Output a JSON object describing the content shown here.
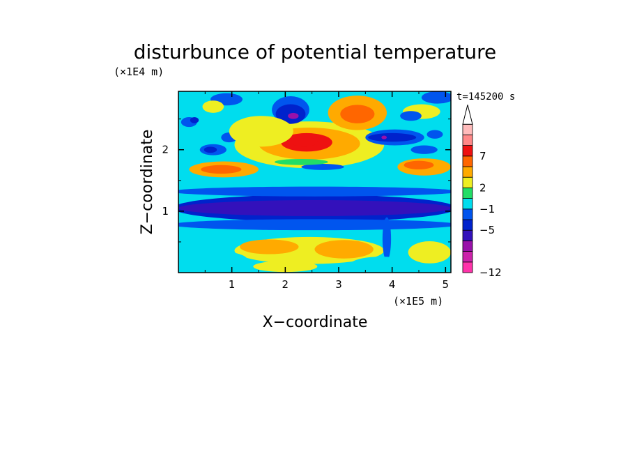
{
  "chart_data": {
    "type": "heatmap",
    "title": "disturbunce of potential temperature",
    "xlabel": "X−coordinate",
    "ylabel": "Z−coordinate",
    "x_unit": "(×1E5 m)",
    "y_unit": "(×1E4 m)",
    "time_label": "t=145200 s",
    "xlim": [
      0,
      5.1
    ],
    "ylim": [
      0,
      2.95
    ],
    "x_ticks": [
      1,
      2,
      3,
      4,
      5
    ],
    "y_ticks": [
      1,
      2
    ],
    "x_tick_labels": [
      "1",
      "2",
      "3",
      "4",
      "5"
    ],
    "y_tick_labels": [
      "1",
      "2"
    ],
    "colorbar": {
      "levels": [
        -12,
        -11,
        -9,
        -7,
        -5,
        -3,
        -1,
        0.5,
        2,
        4,
        5.5,
        7,
        8.5,
        10
      ],
      "colors": [
        "#ff33aa",
        "#cc22aa",
        "#9911aa",
        "#3311bb",
        "#0022cc",
        "#0055ee",
        "#00ddee",
        "#22dd66",
        "#eeee22",
        "#ffaa00",
        "#ff6600",
        "#ee1111",
        "#ff8888",
        "#ffbbbb"
      ],
      "labels": [
        {
          "value": -12,
          "text": "−12"
        },
        {
          "value": -5,
          "text": "−5"
        },
        {
          "value": -1,
          "text": "−1"
        },
        {
          "value": 2,
          "text": "2"
        },
        {
          "value": 7,
          "text": "7"
        }
      ],
      "extend": "max"
    },
    "features": [
      {
        "x": 2.55,
        "z": 1.05,
        "rx": 2.65,
        "rz": 0.22,
        "value": -5
      },
      {
        "x": 2.55,
        "z": 1.05,
        "rx": 2.55,
        "rz": 0.13,
        "value": -6
      },
      {
        "x": 2.55,
        "z": 0.78,
        "rx": 2.7,
        "rz": 0.09,
        "value": -2
      },
      {
        "x": 2.55,
        "z": 1.32,
        "rx": 2.7,
        "rz": 0.08,
        "value": -2
      },
      {
        "x": 2.45,
        "z": 0.36,
        "rx": 1.4,
        "rz": 0.22,
        "value": 3
      },
      {
        "x": 1.7,
        "z": 0.42,
        "rx": 0.55,
        "rz": 0.12,
        "value": 4
      },
      {
        "x": 3.1,
        "z": 0.38,
        "rx": 0.55,
        "rz": 0.15,
        "value": 4
      },
      {
        "x": 4.7,
        "z": 0.33,
        "rx": 0.4,
        "rz": 0.18,
        "value": 3
      },
      {
        "x": 0.7,
        "z": 0.2,
        "rx": 0.6,
        "rz": 0.15,
        "value": -1
      },
      {
        "x": 2.45,
        "z": 2.08,
        "rx": 1.4,
        "rz": 0.38,
        "value": 3
      },
      {
        "x": 2.45,
        "z": 2.1,
        "rx": 0.95,
        "rz": 0.26,
        "value": 5
      },
      {
        "x": 2.4,
        "z": 2.12,
        "rx": 0.48,
        "rz": 0.15,
        "value": 7
      },
      {
        "x": 2.35,
        "z": 2.13,
        "rx": 0.25,
        "rz": 0.08,
        "value": 8
      },
      {
        "x": 0.85,
        "z": 1.68,
        "rx": 0.65,
        "rz": 0.13,
        "value": 4
      },
      {
        "x": 0.8,
        "z": 1.68,
        "rx": 0.38,
        "rz": 0.07,
        "value": 6
      },
      {
        "x": 4.6,
        "z": 1.72,
        "rx": 0.5,
        "rz": 0.14,
        "value": 4
      },
      {
        "x": 4.5,
        "z": 1.75,
        "rx": 0.28,
        "rz": 0.07,
        "value": 6
      },
      {
        "x": 2.7,
        "z": 1.72,
        "rx": 0.4,
        "rz": 0.05,
        "value": -2
      },
      {
        "x": 2.3,
        "z": 1.8,
        "rx": 0.5,
        "rz": 0.05,
        "value": 1
      },
      {
        "x": 2.1,
        "z": 2.65,
        "rx": 0.35,
        "rz": 0.22,
        "value": -3
      },
      {
        "x": 2.1,
        "z": 2.58,
        "rx": 0.28,
        "rz": 0.16,
        "value": -5
      },
      {
        "x": 2.15,
        "z": 2.55,
        "rx": 0.1,
        "rz": 0.05,
        "value": -9
      },
      {
        "x": 3.35,
        "z": 2.6,
        "rx": 0.55,
        "rz": 0.28,
        "value": 4
      },
      {
        "x": 3.35,
        "z": 2.58,
        "rx": 0.32,
        "rz": 0.15,
        "value": 6
      },
      {
        "x": 4.05,
        "z": 2.2,
        "rx": 0.55,
        "rz": 0.13,
        "value": -3
      },
      {
        "x": 4.0,
        "z": 2.2,
        "rx": 0.45,
        "rz": 0.07,
        "value": -5
      },
      {
        "x": 3.85,
        "z": 2.2,
        "rx": 0.05,
        "rz": 0.03,
        "value": -9
      },
      {
        "x": 4.55,
        "z": 2.62,
        "rx": 0.35,
        "rz": 0.12,
        "value": 2
      },
      {
        "x": 4.85,
        "z": 2.85,
        "rx": 0.3,
        "rz": 0.1,
        "value": -2
      },
      {
        "x": 0.2,
        "z": 2.45,
        "rx": 0.15,
        "rz": 0.08,
        "value": -3
      },
      {
        "x": 0.3,
        "z": 2.48,
        "rx": 0.08,
        "rz": 0.05,
        "value": -5
      },
      {
        "x": 0.9,
        "z": 2.82,
        "rx": 0.3,
        "rz": 0.1,
        "value": -3
      },
      {
        "x": 0.65,
        "z": 2.7,
        "rx": 0.2,
        "rz": 0.1,
        "value": 3
      },
      {
        "x": 0.65,
        "z": 2.0,
        "rx": 0.25,
        "rz": 0.09,
        "value": -3
      },
      {
        "x": 0.6,
        "z": 2.0,
        "rx": 0.12,
        "rz": 0.05,
        "value": -5
      },
      {
        "x": 0.95,
        "z": 2.2,
        "rx": 0.15,
        "rz": 0.08,
        "value": -3
      },
      {
        "x": 4.8,
        "z": 2.25,
        "rx": 0.15,
        "rz": 0.07,
        "value": -3
      },
      {
        "x": 4.6,
        "z": 2.0,
        "rx": 0.25,
        "rz": 0.07,
        "value": -2
      },
      {
        "x": 4.35,
        "z": 2.55,
        "rx": 0.2,
        "rz": 0.08,
        "value": -3
      },
      {
        "x": 1.55,
        "z": 2.3,
        "rx": 0.6,
        "rz": 0.25,
        "value": 2
      },
      {
        "x": 3.9,
        "z": 0.55,
        "rx": 0.08,
        "rz": 0.35,
        "value": -2
      },
      {
        "x": 3.8,
        "z": 0.12,
        "rx": 0.6,
        "rz": 0.14,
        "value": -1
      },
      {
        "x": 2.0,
        "z": 0.1,
        "rx": 0.6,
        "rz": 0.09,
        "value": 2
      }
    ]
  }
}
